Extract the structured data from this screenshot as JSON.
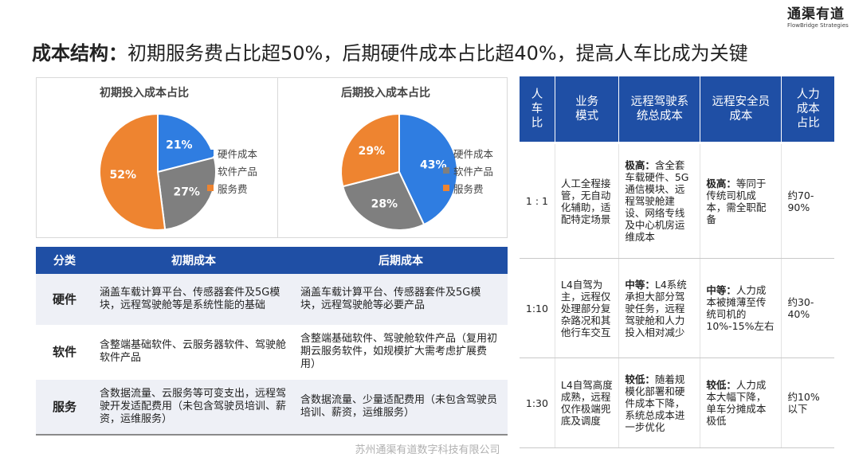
{
  "logo": {
    "cn": "通渠有道",
    "en": "FlowBridge Strategies"
  },
  "title": {
    "bold": "成本结构：",
    "rest": "初期服务费占比超50%，后期硬件成本占比超40%，提高人车比成为关键"
  },
  "chart_data": [
    {
      "type": "pie",
      "title": "初期投入成本占比",
      "categories": [
        "硬件成本",
        "软件产品",
        "服务费"
      ],
      "values": [
        21,
        27,
        52
      ],
      "labels": [
        "21%",
        "27%",
        "52%"
      ],
      "colors": [
        "#2f7de1",
        "#7f7f7f",
        "#ee8430"
      ],
      "legend": "right"
    },
    {
      "type": "pie",
      "title": "后期投入成本占比",
      "categories": [
        "硬件成本",
        "软件产品",
        "服务费"
      ],
      "values": [
        43,
        28,
        29
      ],
      "labels": [
        "43%",
        "28%",
        "29%"
      ],
      "colors": [
        "#2f7de1",
        "#7f7f7f",
        "#ee8430"
      ],
      "legend": "right"
    }
  ],
  "left_table": {
    "headers": [
      "分类",
      "初期成本",
      "后期成本"
    ],
    "rows": [
      {
        "cat": "硬件",
        "early": "涵盖车载计算平台、传感器套件及5G模块，远程驾驶舱等是系统性能的基础",
        "late": "涵盖车载计算平台、传感器套件及5G模块，远程驾驶舱等必要产品"
      },
      {
        "cat": "软件",
        "early": "含整端基础软件、云服务器软件、驾驶舱软件产品",
        "late": "含整端基础软件、驾驶舱软件产品（复用初期云服务软件，如规模扩大需考虑扩展费用）"
      },
      {
        "cat": "服务",
        "early": "含数据流量、云服务等可变支出，远程驾驶开发适配费用（未包含驾驶员培训、薪资，运维服务）",
        "late": "含数据流量、少量适配费用（未包含驾驶员培训、薪资，运维服务）"
      }
    ]
  },
  "right_table": {
    "headers": [
      "人车比",
      "业务模式",
      "远程驾驶系统总成本",
      "远程安全员成本",
      "人力成本占比"
    ],
    "rows": [
      {
        "ratio": "1 : 1",
        "mode": "人工全程接管，无自动化辅助，适配特定场景",
        "sys_level": "极高：",
        "sys_text": "含全套车载硬件、5G通信模块、远程驾驶舱建设、网络专线及中心机房运维成本",
        "safety_level": "极高：",
        "safety_text": "等同于传统司机成本，需全职配备",
        "share": "约70-90%"
      },
      {
        "ratio": "1:10",
        "mode": "L4自驾为主，远程仅处理部分复杂路况和其他行车交互",
        "sys_level": "中等：",
        "sys_text": "L4系统承担大部分驾驶任务，远程驾驶舱和人力投入相对减少",
        "safety_level": "中等：",
        "safety_text": "人力成本被摊薄至传统司机的10%-15%左右",
        "share": "约30-40%"
      },
      {
        "ratio": "1:30",
        "mode": "L4自驾高度成熟，远程仅作极端兜底及调度",
        "sys_level": "较低：",
        "sys_text": "随着规模化部署和硬件成本下降，系统总成本进一步优化",
        "safety_level": "较低：",
        "safety_text": "人力成本大幅下降，单车分摊成本极低",
        "share": "约10%以下"
      }
    ]
  },
  "footer": "苏州通渠有道数字科技有限公司"
}
